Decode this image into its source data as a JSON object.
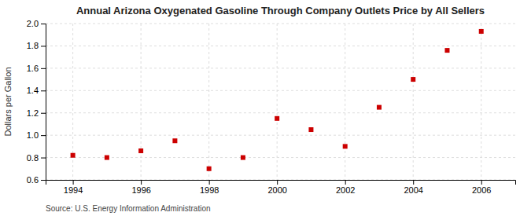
{
  "chart_data": {
    "type": "scatter",
    "title": "Annual Arizona Oxygenated Gasoline Through Company Outlets Price by All Sellers",
    "ylabel": "Dollars per Gallon",
    "source": "Source: U.S. Energy Information Administration",
    "x": [
      1994,
      1995,
      1996,
      1997,
      1998,
      1999,
      2000,
      2001,
      2002,
      2003,
      2004,
      2005,
      2006
    ],
    "values": [
      0.82,
      0.8,
      0.86,
      0.95,
      0.7,
      0.8,
      1.15,
      1.05,
      0.9,
      1.25,
      1.5,
      1.76,
      1.93
    ],
    "color": "#cc0000",
    "marker": "square",
    "xlim": [
      1993.2,
      2007.0
    ],
    "ylim": [
      0.6,
      2.0
    ],
    "xticks": [
      1994,
      1996,
      1998,
      2000,
      2002,
      2004,
      2006
    ],
    "yticks": [
      0.6,
      0.8,
      {
        "value": 1.0,
        "label": "1.0"
      },
      1.2,
      1.4,
      1.6,
      1.8,
      {
        "value": 2.0,
        "label": "2.0"
      }
    ],
    "grid": true
  }
}
